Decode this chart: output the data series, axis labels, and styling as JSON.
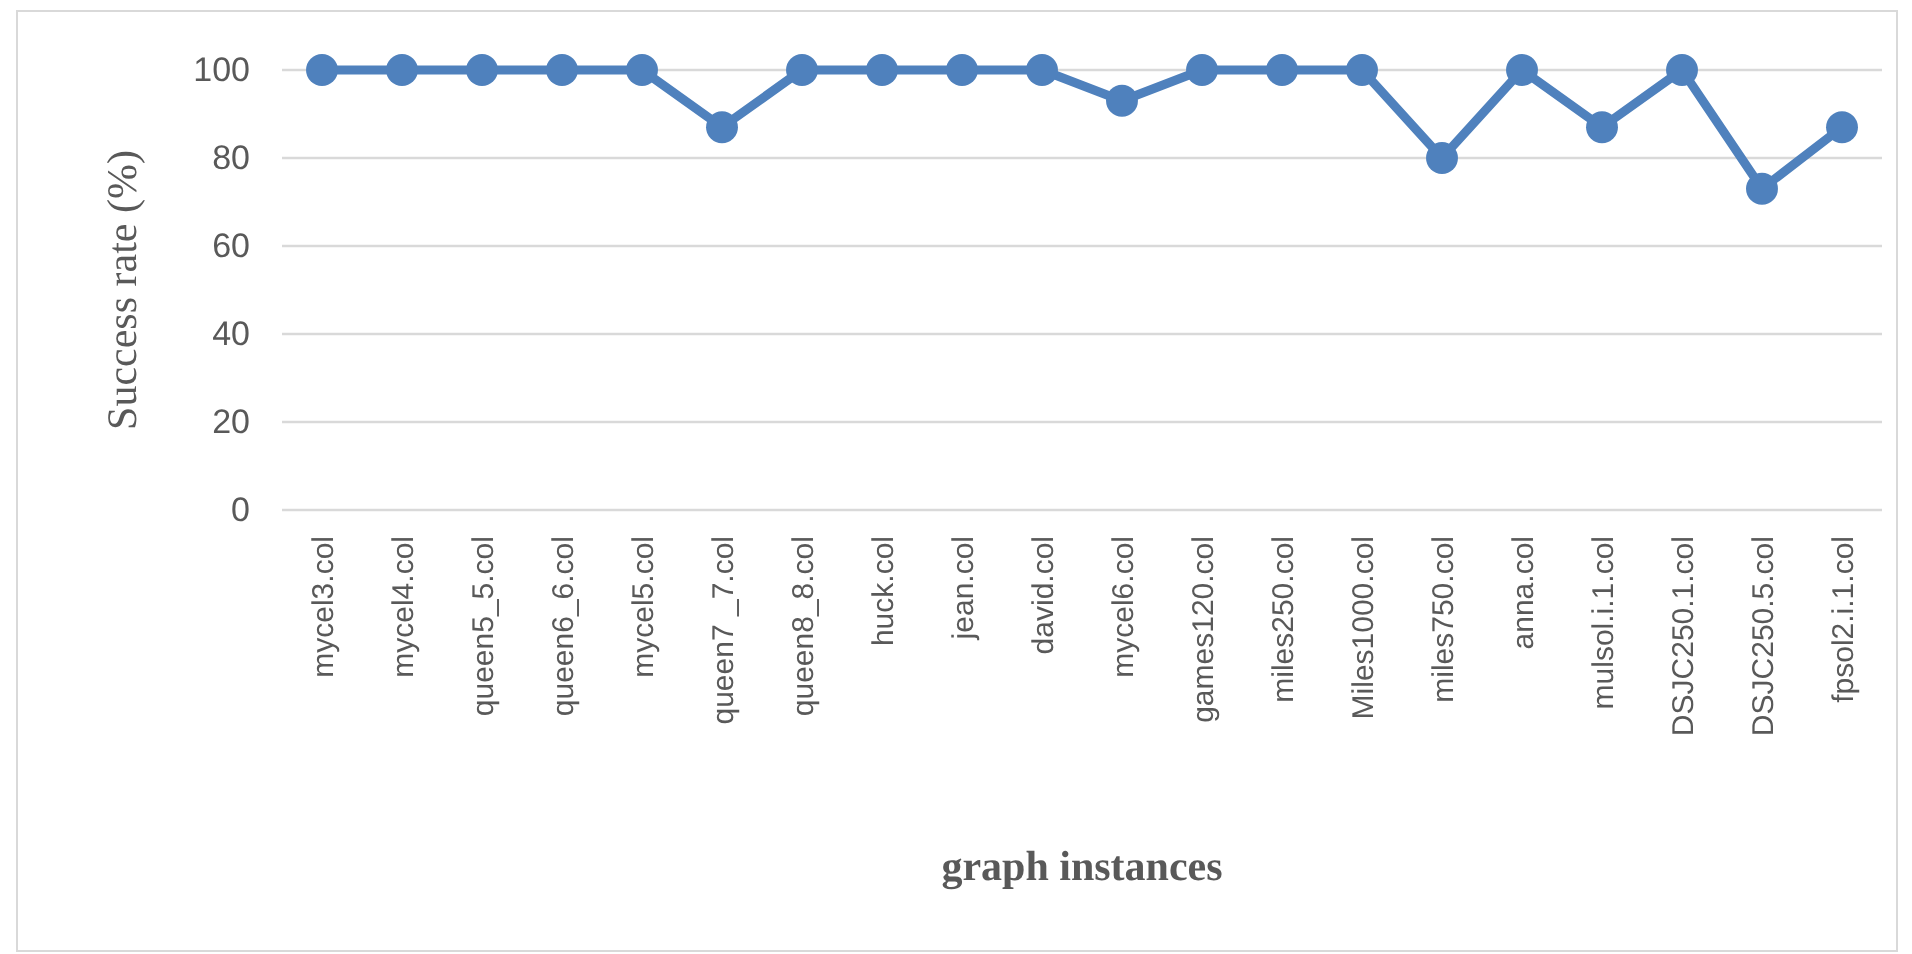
{
  "chart_data": {
    "type": "line",
    "xlabel": "graph instances",
    "ylabel": "Success rate (%)",
    "categories": [
      "mycel3.col",
      "mycel4.col",
      "queen5_5.col",
      "queen6_6.col",
      "mycel5.col",
      "queen7 _7.col",
      "queen8_8.col",
      "huck.col",
      "jean.col",
      "david.col",
      "mycel6.col",
      "games120.col",
      "miles250.col",
      "Miles1000.col",
      "miles750.col",
      "anna.col",
      "mulsol.i.1.col",
      "DSJC250.1.col",
      "DSJC250.5.col",
      "fpsol2.i.1.col"
    ],
    "series": [
      {
        "color": "#4f81bd",
        "values": [
          100,
          100,
          100,
          100,
          100,
          87,
          100,
          100,
          100,
          100,
          93,
          100,
          100,
          100,
          80,
          100,
          87,
          100,
          73,
          87
        ]
      }
    ],
    "ylim": [
      0,
      100
    ],
    "yticks": [
      0,
      20,
      40,
      60,
      80,
      100
    ],
    "grid": "y",
    "marker": "circle",
    "line_style": "solid"
  }
}
